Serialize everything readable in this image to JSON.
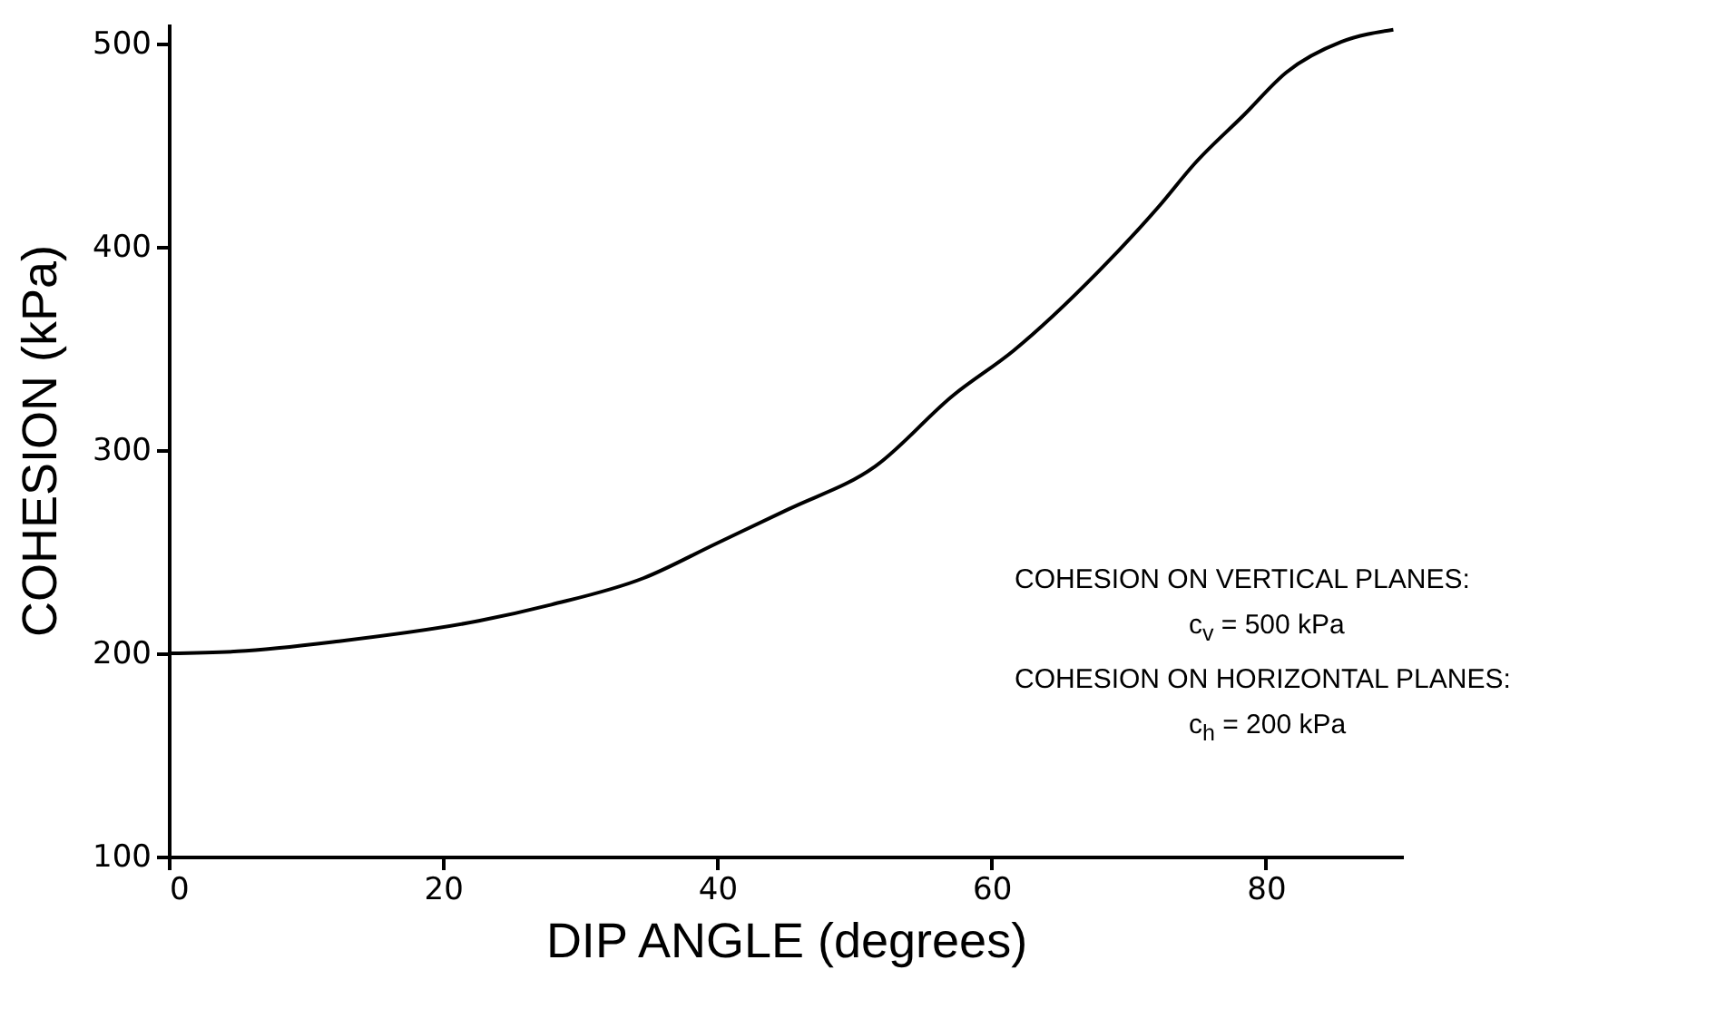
{
  "chart_data": {
    "type": "line",
    "xlabel": "DIP ANGLE (degrees)",
    "ylabel": "COHESION (kPa)",
    "x": [
      0,
      5,
      12.4,
      22.6,
      27.9,
      34.6,
      39.9,
      45.2,
      51.5,
      57.2,
      61.6,
      67.8,
      72.2,
      74.8,
      78.4,
      81.5,
      85.5,
      89.3
    ],
    "values": [
      200,
      201,
      206,
      216,
      224,
      237,
      254,
      271,
      292,
      327,
      349,
      388,
      420,
      441,
      465,
      486,
      501,
      507
    ],
    "color": "#000000",
    "xlim": [
      0,
      90
    ],
    "xticks": [
      0,
      20,
      40,
      60,
      80
    ],
    "ylim": [
      100,
      510
    ],
    "yticks": [
      100,
      200,
      300,
      400,
      500
    ],
    "grid": false,
    "marker": "none",
    "line_style": "solid",
    "annotations": [
      "COHESION ON VERTICAL PLANES:",
      "c$_{v}$ = 500 kPa",
      "COHESION ON HORIZONTAL PLANES:",
      "c$_{h}$ = 200 kPa"
    ]
  }
}
